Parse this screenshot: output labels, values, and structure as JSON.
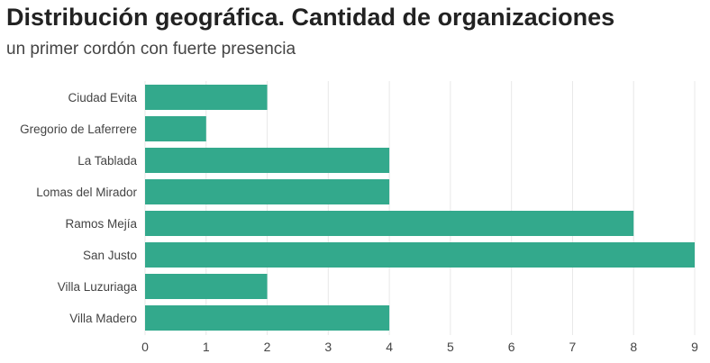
{
  "chart_data": {
    "type": "bar",
    "orientation": "horizontal",
    "title": "Distribución geográfica. Cantidad de organizaciones",
    "subtitle": "un primer cordón con fuerte presencia",
    "categories": [
      "Ciudad Evita",
      "Gregorio de Laferrere",
      "La Tablada",
      "Lomas del Mirador",
      "Ramos Mejía",
      "San Justo",
      "Villa Luzuriaga",
      "Villa Madero"
    ],
    "values": [
      2,
      1,
      4,
      4,
      8,
      9,
      2,
      4
    ],
    "xlim": [
      0,
      9
    ],
    "xticks": [
      0,
      1,
      2,
      3,
      4,
      5,
      6,
      7,
      8,
      9
    ],
    "xlabel": "",
    "ylabel": "",
    "grid": true,
    "bar_color": "#33a98c"
  }
}
